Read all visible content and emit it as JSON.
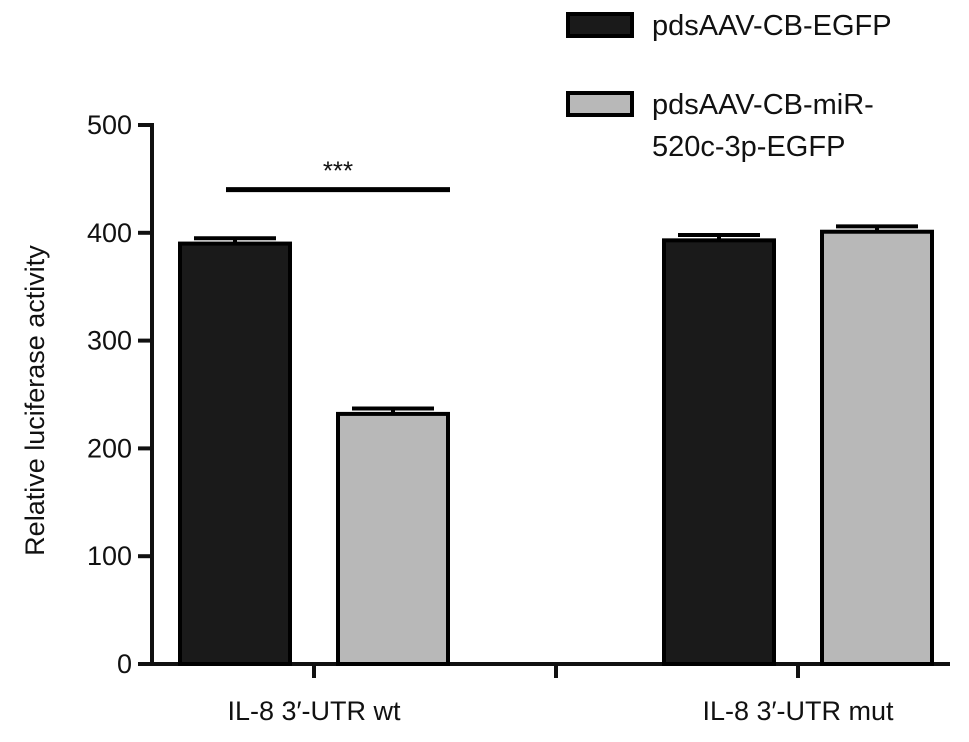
{
  "chart_data": {
    "type": "bar",
    "categories": [
      "IL-8 3′-UTR wt",
      "IL-8 3′-UTR mut"
    ],
    "series": [
      {
        "name": "pdsAAV-CB-EGFP",
        "values": [
          390,
          393
        ],
        "errors": [
          5,
          5
        ],
        "color": "#1a1a1a"
      },
      {
        "name": "pdsAAV-CB-miR-520c-3p-EGFP",
        "values": [
          232,
          401
        ],
        "errors": [
          5,
          5
        ],
        "color": "#b8b8b8"
      }
    ],
    "legend_lines": [
      [
        "pdsAAV-CB-EGFP"
      ],
      [
        "pdsAAV-CB-miR-",
        "520c-3p-EGFP"
      ]
    ],
    "ylabel": "Relative luciferase activity",
    "xlabel": "",
    "ylim": [
      0,
      500
    ],
    "yticks": [
      0,
      100,
      200,
      300,
      400,
      500
    ],
    "grid": false,
    "legend_position": "top-right",
    "annotations": [
      {
        "text": "***",
        "category_index": 0,
        "series_from": 0,
        "series_to": 1,
        "y": 440
      }
    ]
  }
}
